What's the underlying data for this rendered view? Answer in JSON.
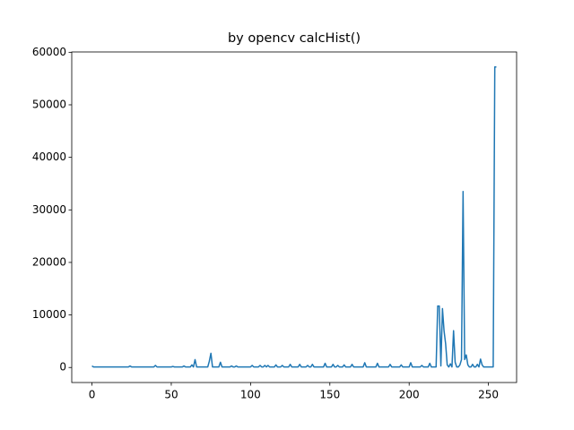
{
  "chart_data": {
    "type": "line",
    "title": "by opencv calcHist()",
    "x": [
      0,
      1,
      2,
      3,
      4,
      5,
      6,
      7,
      8,
      9,
      10,
      11,
      12,
      13,
      14,
      15,
      16,
      17,
      18,
      19,
      20,
      21,
      22,
      23,
      24,
      25,
      26,
      27,
      28,
      29,
      30,
      31,
      32,
      33,
      34,
      35,
      36,
      37,
      38,
      39,
      40,
      41,
      42,
      43,
      44,
      45,
      46,
      47,
      48,
      49,
      50,
      51,
      52,
      53,
      54,
      55,
      56,
      57,
      58,
      59,
      60,
      61,
      62,
      63,
      64,
      65,
      66,
      67,
      68,
      69,
      70,
      71,
      72,
      73,
      74,
      75,
      76,
      77,
      78,
      79,
      80,
      81,
      82,
      83,
      84,
      85,
      86,
      87,
      88,
      89,
      90,
      91,
      92,
      93,
      94,
      95,
      96,
      97,
      98,
      99,
      100,
      101,
      102,
      103,
      104,
      105,
      106,
      107,
      108,
      109,
      110,
      111,
      112,
      113,
      114,
      115,
      116,
      117,
      118,
      119,
      120,
      121,
      122,
      123,
      124,
      125,
      126,
      127,
      128,
      129,
      130,
      131,
      132,
      133,
      134,
      135,
      136,
      137,
      138,
      139,
      140,
      141,
      142,
      143,
      144,
      145,
      146,
      147,
      148,
      149,
      150,
      151,
      152,
      153,
      154,
      155,
      156,
      157,
      158,
      159,
      160,
      161,
      162,
      163,
      164,
      165,
      166,
      167,
      168,
      169,
      170,
      171,
      172,
      173,
      174,
      175,
      176,
      177,
      178,
      179,
      180,
      181,
      182,
      183,
      184,
      185,
      186,
      187,
      188,
      189,
      190,
      191,
      192,
      193,
      194,
      195,
      196,
      197,
      198,
      199,
      200,
      201,
      202,
      203,
      204,
      205,
      206,
      207,
      208,
      209,
      210,
      211,
      212,
      213,
      214,
      215,
      216,
      217,
      218,
      219,
      220,
      221,
      222,
      223,
      224,
      225,
      226,
      227,
      228,
      229,
      230,
      231,
      232,
      233,
      234,
      235,
      236,
      237,
      238,
      239,
      240,
      241,
      242,
      243,
      244,
      245,
      246,
      247,
      248,
      249,
      250,
      251,
      252,
      253,
      254,
      255
    ],
    "series": [
      {
        "color": "#1f77b4",
        "values": [
          300,
          100,
          100,
          100,
          100,
          100,
          100,
          100,
          100,
          100,
          100,
          100,
          100,
          100,
          100,
          100,
          100,
          100,
          100,
          100,
          100,
          100,
          100,
          100,
          300,
          100,
          100,
          100,
          100,
          100,
          100,
          100,
          100,
          100,
          100,
          100,
          100,
          100,
          100,
          100,
          400,
          100,
          100,
          100,
          100,
          100,
          100,
          100,
          100,
          100,
          100,
          200,
          100,
          100,
          100,
          100,
          100,
          100,
          300,
          100,
          100,
          100,
          100,
          500,
          100,
          1500,
          100,
          100,
          100,
          100,
          100,
          100,
          100,
          100,
          1200,
          2700,
          100,
          100,
          100,
          100,
          100,
          1000,
          100,
          100,
          100,
          100,
          100,
          100,
          300,
          100,
          100,
          300,
          100,
          100,
          100,
          100,
          100,
          100,
          100,
          100,
          100,
          400,
          100,
          100,
          100,
          100,
          400,
          100,
          100,
          400,
          100,
          400,
          100,
          100,
          100,
          100,
          500,
          100,
          100,
          100,
          400,
          100,
          100,
          100,
          100,
          600,
          100,
          100,
          100,
          100,
          100,
          600,
          100,
          100,
          100,
          100,
          400,
          100,
          100,
          600,
          100,
          100,
          100,
          100,
          100,
          100,
          100,
          800,
          100,
          100,
          100,
          100,
          600,
          100,
          100,
          400,
          100,
          100,
          100,
          500,
          100,
          100,
          100,
          100,
          600,
          100,
          100,
          100,
          100,
          100,
          100,
          100,
          900,
          100,
          100,
          100,
          100,
          100,
          100,
          100,
          800,
          100,
          100,
          100,
          100,
          100,
          100,
          100,
          600,
          100,
          100,
          100,
          100,
          100,
          100,
          500,
          100,
          100,
          100,
          100,
          100,
          900,
          100,
          100,
          100,
          100,
          100,
          100,
          400,
          100,
          100,
          100,
          100,
          800,
          100,
          100,
          100,
          100,
          11700,
          11700,
          300,
          11200,
          7000,
          4500,
          500,
          100,
          700,
          100,
          7000,
          1000,
          100,
          100,
          500,
          1500,
          33500,
          1500,
          2400,
          500,
          100,
          100,
          600,
          100,
          100,
          600,
          100,
          1600,
          500,
          100,
          100,
          100,
          100,
          100,
          100,
          100,
          57200,
          57200
        ]
      }
    ],
    "xlim": [
      -12.75,
      267.75
    ],
    "ylim": [
      -2860,
      60060
    ],
    "xticks": [
      0,
      50,
      100,
      150,
      200,
      250
    ],
    "yticks": [
      0,
      10000,
      20000,
      30000,
      40000,
      50000,
      60000
    ]
  }
}
